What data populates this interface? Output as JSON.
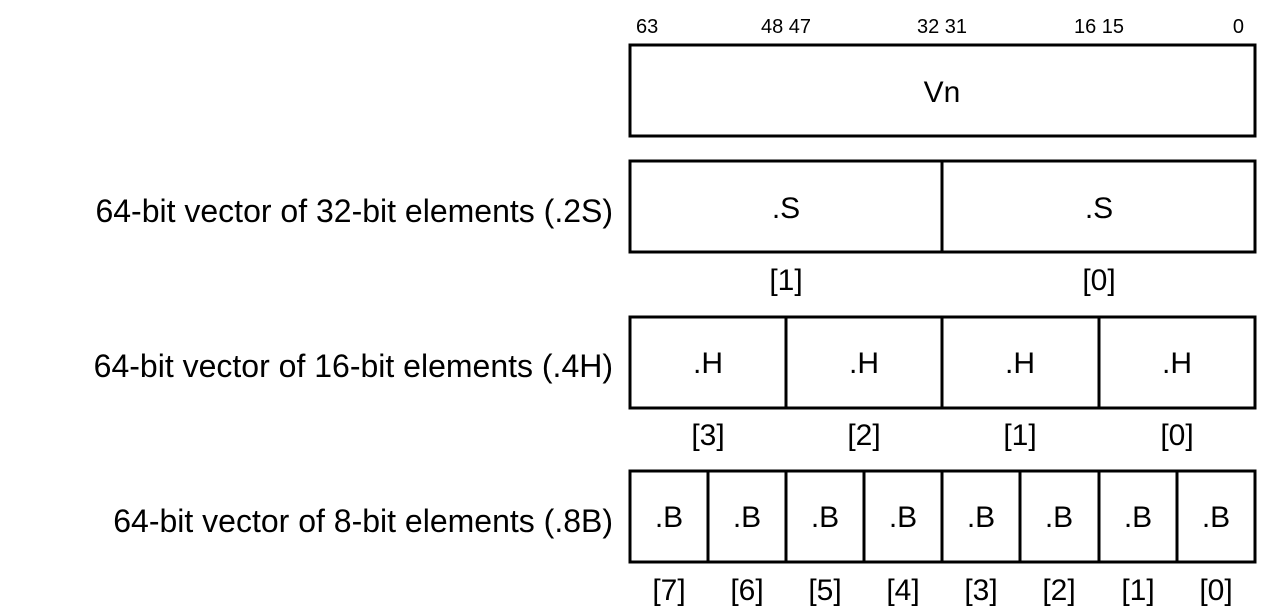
{
  "bit_labels": [
    "63",
    "48 47",
    "32 31",
    "16 15",
    "0"
  ],
  "register": {
    "name": "Vn"
  },
  "rows": [
    {
      "label": "64-bit vector of 32-bit elements (.2S)",
      "element": ".S",
      "indices": [
        "[1]",
        "[0]"
      ]
    },
    {
      "label": "64-bit vector of 16-bit elements (.4H)",
      "element": ".H",
      "indices": [
        "[3]",
        "[2]",
        "[1]",
        "[0]"
      ]
    },
    {
      "label": "64-bit vector of 8-bit elements (.8B)",
      "element": ".B",
      "indices": [
        "[7]",
        "[6]",
        "[5]",
        "[4]",
        "[3]",
        "[2]",
        "[1]",
        "[0]"
      ]
    }
  ]
}
